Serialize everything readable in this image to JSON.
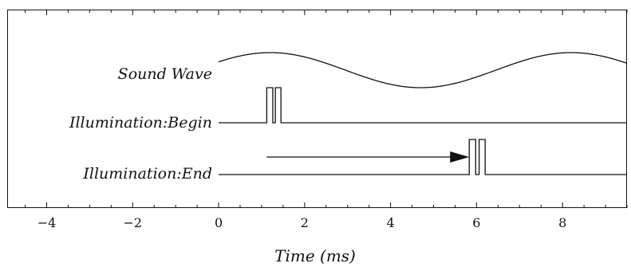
{
  "chart_data": {
    "type": "line",
    "xlabel": "Time (ms)",
    "xlim": [
      -4.9,
      9.5
    ],
    "xticks": [
      -4,
      -2,
      0,
      2,
      4,
      6,
      8
    ],
    "tick_labels": [
      "−4",
      "−2",
      "0",
      "2",
      "4",
      "6",
      "8"
    ],
    "grid": false,
    "series": [
      {
        "name": "Sound Wave",
        "kind": "sine",
        "x_range": [
          0,
          9.5
        ],
        "period": 7.0,
        "peak_x": 1.2
      },
      {
        "name": "Illumination:Begin",
        "kind": "pulses",
        "x_range": [
          0,
          9.5
        ],
        "pulses": [
          [
            1.12,
            1.26
          ],
          [
            1.32,
            1.45
          ]
        ]
      },
      {
        "name": "Illumination:End",
        "kind": "pulses",
        "x_range": [
          0,
          9.5
        ],
        "pulses": [
          [
            5.83,
            5.98
          ],
          [
            6.06,
            6.2
          ]
        ]
      }
    ],
    "annotations": [
      {
        "type": "arrow",
        "from_x": 1.12,
        "to_x": 5.83,
        "lane": "Illumination:End"
      }
    ]
  }
}
